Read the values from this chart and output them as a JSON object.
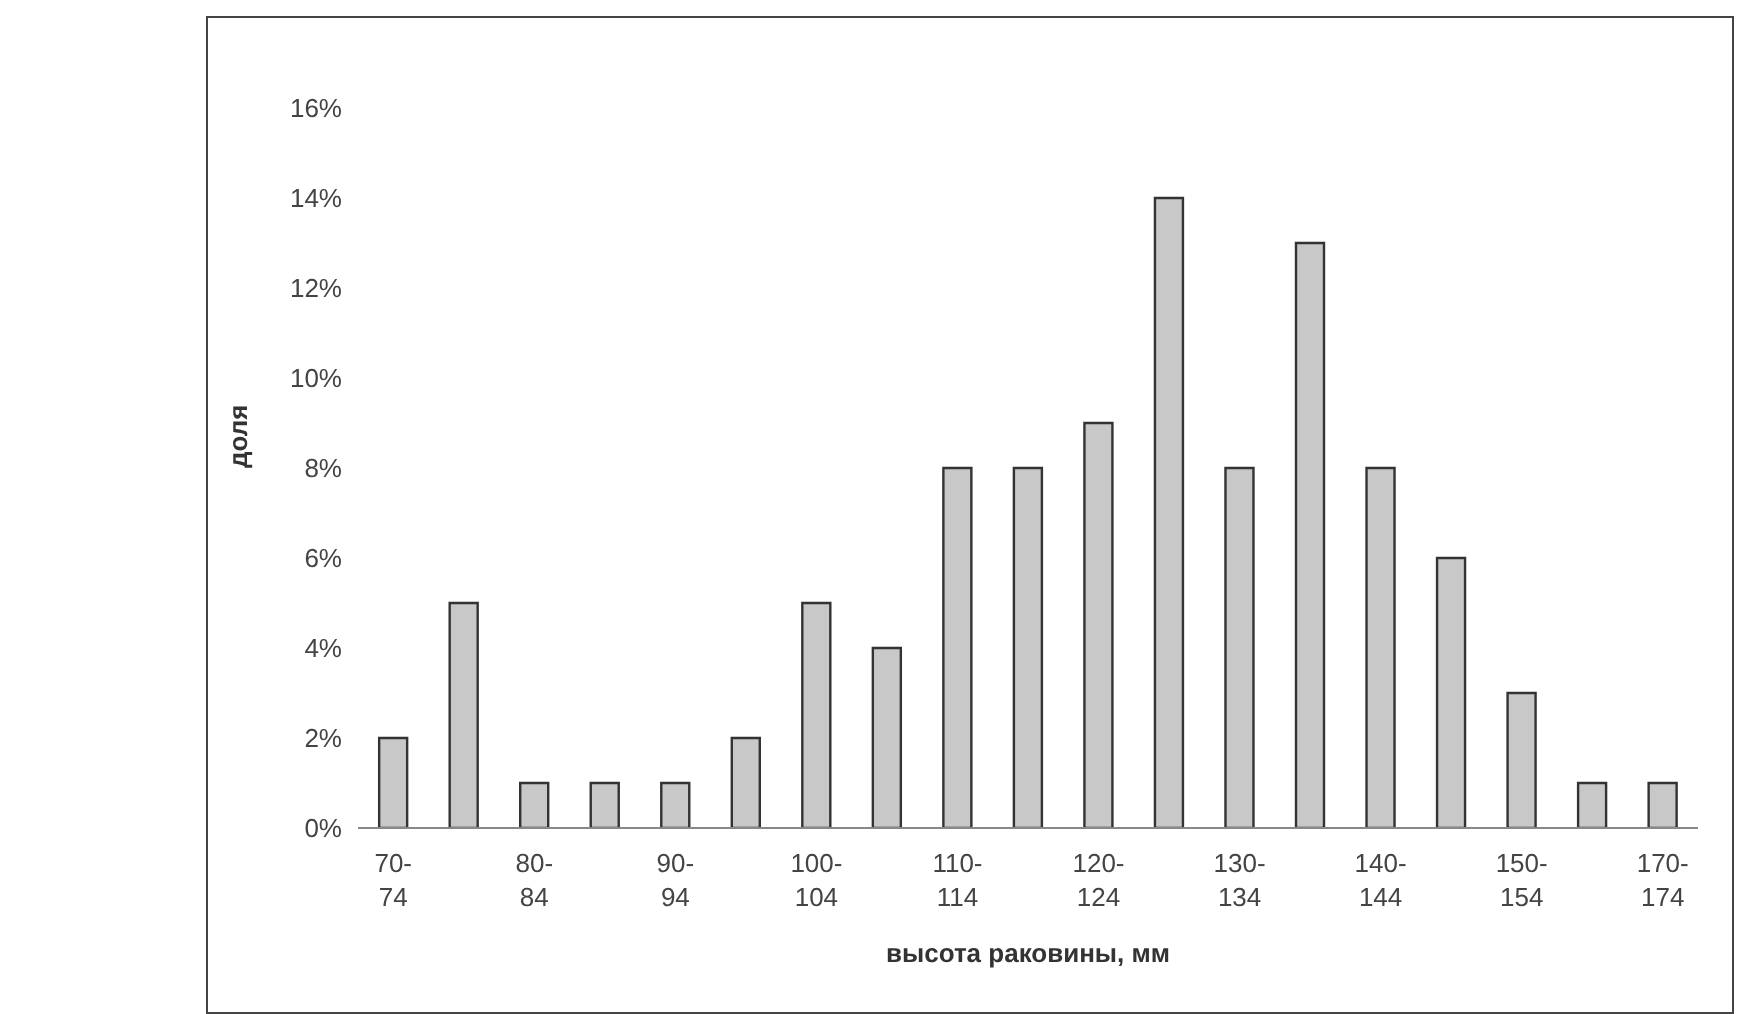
{
  "chart_data": {
    "type": "bar",
    "xlabel": "высота раковины, мм",
    "ylabel": "доля",
    "categories": [
      "70-74",
      null,
      "80-84",
      null,
      "90-94",
      null,
      "100-104",
      null,
      "110-114",
      null,
      "120-124",
      null,
      "130-134",
      null,
      "140-144",
      null,
      "150-154",
      null,
      "170-174"
    ],
    "values": [
      2,
      5,
      1,
      1,
      1,
      2,
      5,
      4,
      8,
      8,
      9,
      14,
      8,
      13,
      8,
      6,
      3,
      1,
      1
    ],
    "color": "#c8c8c8",
    "ylim": [
      0,
      16
    ],
    "yticks": [
      {
        "value": 0,
        "label": "0%"
      },
      {
        "value": 2,
        "label": "2%"
      },
      {
        "value": 4,
        "label": "4%"
      },
      {
        "value": 6,
        "label": "6%"
      },
      {
        "value": 8,
        "label": "8%"
      },
      {
        "value": 10,
        "label": "10%"
      },
      {
        "value": 12,
        "label": "12%"
      },
      {
        "value": 14,
        "label": "14%"
      },
      {
        "value": 16,
        "label": "16%"
      }
    ],
    "grid": false,
    "legend": false
  }
}
